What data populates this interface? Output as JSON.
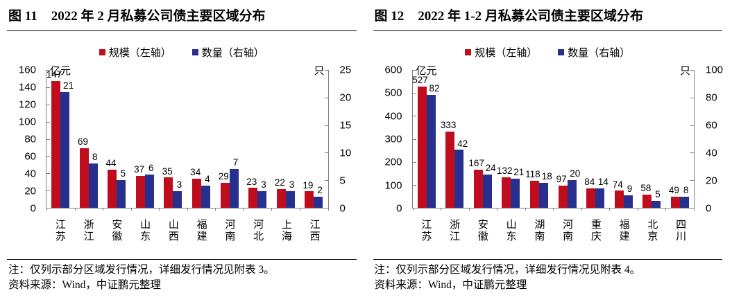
{
  "colors": {
    "scale_red": "#C00D1E",
    "count_blue": "#28308F",
    "axis_gray": "#7F7F7F"
  },
  "chart_data": [
    {
      "type": "bar",
      "fig_label": "图 11",
      "title": "2022 年 2 月私募公司债主要区域分布",
      "categories": [
        "江苏",
        "浙江",
        "安徽",
        "山东",
        "山西",
        "福建",
        "河南",
        "河北",
        "上海",
        "江西"
      ],
      "series": [
        {
          "name": "规模（左轴）",
          "axis": "left",
          "color": "#C00D1E",
          "values": [
            147,
            69,
            44,
            37,
            35,
            34,
            29,
            23,
            22,
            19
          ]
        },
        {
          "name": "数量（右轴）",
          "axis": "right",
          "color": "#28308F",
          "values": [
            21,
            8,
            5,
            6,
            3,
            4,
            7,
            3,
            3,
            2
          ]
        }
      ],
      "left_axis": {
        "unit": "亿元",
        "min": 0,
        "max": 160,
        "ticks": [
          0,
          20,
          40,
          60,
          80,
          100,
          120,
          140,
          160
        ]
      },
      "right_axis": {
        "unit": "只",
        "min": 0,
        "max": 25,
        "ticks": [
          0,
          5,
          10,
          15,
          20,
          25
        ]
      },
      "legend_position": "top",
      "grid": false,
      "note": "注：仅列示部分区域发行情况，详细发行情况见附表 3。",
      "source": "资料来源：Wind，中证鹏元整理"
    },
    {
      "type": "bar",
      "fig_label": "图 12",
      "title": "2022 年 1-2 月私募公司债主要区域分布",
      "categories": [
        "江苏",
        "浙江",
        "安徽",
        "山东",
        "湖南",
        "河南",
        "重庆",
        "福建",
        "北京",
        "四川"
      ],
      "series": [
        {
          "name": "规模（左轴）",
          "axis": "left",
          "color": "#C00D1E",
          "values": [
            527,
            333,
            167,
            132,
            118,
            97,
            84,
            74,
            58,
            49
          ]
        },
        {
          "name": "数量（右轴）",
          "axis": "right",
          "color": "#28308F",
          "values": [
            82,
            42,
            24,
            21,
            18,
            20,
            14,
            9,
            5,
            8
          ]
        }
      ],
      "left_axis": {
        "unit": "亿元",
        "min": 0,
        "max": 600,
        "ticks": [
          0,
          100,
          200,
          300,
          400,
          500,
          600
        ]
      },
      "right_axis": {
        "unit": "只",
        "min": 0,
        "max": 100,
        "ticks": [
          0,
          20,
          40,
          60,
          80,
          100
        ]
      },
      "legend_position": "top",
      "grid": false,
      "note": "注：仅列示部分区域发行情况，详细发行情况见附表 4。",
      "source": "资料来源：Wind，中证鹏元整理"
    }
  ]
}
